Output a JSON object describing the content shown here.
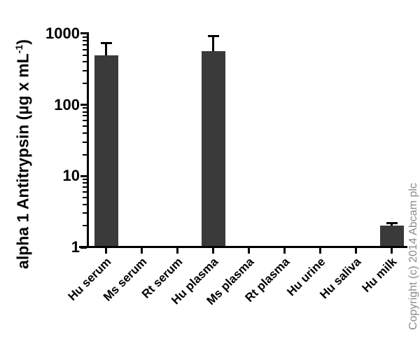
{
  "figure": {
    "ylabel": {
      "pre": "alpha 1 Antitrypsin (µg x mL",
      "sup": "-1",
      "post": ")"
    },
    "copyright": "Copyright (c) 2014 Abcam plc"
  },
  "chart_data": {
    "type": "bar",
    "title": "",
    "categories": [
      "Hu serum",
      "Ms serum",
      "Rt serum",
      "Hu plasma",
      "Ms plasma",
      "Rt plasma",
      "Hu urine",
      "Hu saliva",
      "Hu milk"
    ],
    "values": [
      500,
      0,
      0,
      570,
      0,
      0,
      0,
      0,
      2
    ],
    "error_top": [
      730,
      null,
      null,
      930,
      null,
      null,
      null,
      null,
      2.2
    ],
    "xlabel": "",
    "ylabel": "alpha 1 Antitrypsin (µg x mL-1)",
    "yscale": "log",
    "ylim": [
      1,
      1000
    ],
    "yticks": [
      1,
      10,
      100,
      1000
    ],
    "minor_ticks": true,
    "grid": false,
    "legend": false,
    "bar_color": "#3a3a3a",
    "error_color": "#000000",
    "axis_color": "#000000"
  }
}
